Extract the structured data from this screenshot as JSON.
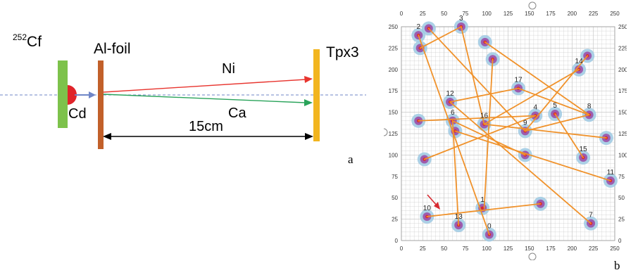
{
  "panel_a": {
    "source_label": "252Cf",
    "source_sup": "252",
    "source_base": "Cf",
    "foil_label": "Al-foil",
    "detector_label": "Tpx3",
    "heavy_fragment": "Ni",
    "light_fragment": "Ca",
    "absorber_label": "Cd",
    "distance_label": "15cm",
    "letter": "a",
    "colors": {
      "source_holder": "#7dc24b",
      "foil": "#c2602a",
      "detector": "#f2b51f",
      "ni_arrow": "#e8352f",
      "ca_arrow": "#29a35a",
      "cd_absorber": "#e0242a",
      "beam_axis": "#6f86c7"
    }
  },
  "panel_b": {
    "letter": "b",
    "x_ticks": [
      "0",
      "25",
      "50",
      "75",
      "100",
      "125",
      "150",
      "175",
      "200",
      "225",
      "250"
    ],
    "y_ticks": [
      "0",
      "25",
      "50",
      "75",
      "100",
      "125",
      "150",
      "175",
      "200",
      "225",
      "250"
    ],
    "range": [
      0,
      250
    ],
    "colors": {
      "track_line": "#f0922b",
      "cluster_halo": "#9ec9e3",
      "cluster_core": "#9a3fa0",
      "cluster_center": "#d7282f",
      "pointer_arrow": "#d7282f",
      "grid": "#c8c8c8"
    },
    "clusters": [
      {
        "label": "0",
        "x": 103,
        "y": 7
      },
      {
        "label": "1",
        "x": 95,
        "y": 38
      },
      {
        "label": "2",
        "x": 20,
        "y": 240
      },
      {
        "label": "3",
        "x": 70,
        "y": 250
      },
      {
        "label": "4",
        "x": 157,
        "y": 146
      },
      {
        "label": "5",
        "x": 180,
        "y": 148
      },
      {
        "label": "6",
        "x": 60,
        "y": 140
      },
      {
        "label": "7",
        "x": 222,
        "y": 20
      },
      {
        "label": "8",
        "x": 220,
        "y": 147
      },
      {
        "label": "9",
        "x": 145,
        "y": 128
      },
      {
        "label": "10",
        "x": 30,
        "y": 28
      },
      {
        "label": "11",
        "x": 245,
        "y": 70
      },
      {
        "label": "12",
        "x": 57,
        "y": 162
      },
      {
        "label": "13",
        "x": 67,
        "y": 18
      },
      {
        "label": "14",
        "x": 208,
        "y": 200
      },
      {
        "label": "15",
        "x": 213,
        "y": 97
      },
      {
        "label": "16",
        "x": 97,
        "y": 136
      },
      {
        "label": "17",
        "x": 137,
        "y": 178
      }
    ],
    "extra_clusters": [
      {
        "x": 32,
        "y": 248
      },
      {
        "x": 22,
        "y": 225
      },
      {
        "x": 98,
        "y": 232
      },
      {
        "x": 107,
        "y": 212
      },
      {
        "x": 218,
        "y": 216
      },
      {
        "x": 20,
        "y": 140
      },
      {
        "x": 27,
        "y": 95
      },
      {
        "x": 63,
        "y": 128
      },
      {
        "x": 145,
        "y": 100
      },
      {
        "x": 240,
        "y": 120
      },
      {
        "x": 163,
        "y": 43
      }
    ],
    "tracks": [
      [
        [
          20,
          240
        ],
        [
          103,
          7
        ]
      ],
      [
        [
          32,
          248
        ],
        [
          145,
          128
        ]
      ],
      [
        [
          22,
          225
        ],
        [
          70,
          250
        ]
      ],
      [
        [
          70,
          250
        ],
        [
          97,
          136
        ]
      ],
      [
        [
          98,
          232
        ],
        [
          220,
          147
        ]
      ],
      [
        [
          107,
          212
        ],
        [
          97,
          38
        ]
      ],
      [
        [
          218,
          216
        ],
        [
          145,
          128
        ]
      ],
      [
        [
          208,
          200
        ],
        [
          97,
          136
        ]
      ],
      [
        [
          57,
          162
        ],
        [
          222,
          20
        ]
      ],
      [
        [
          57,
          162
        ],
        [
          137,
          178
        ]
      ],
      [
        [
          20,
          140
        ],
        [
          157,
          146
        ]
      ],
      [
        [
          60,
          140
        ],
        [
          145,
          100
        ]
      ],
      [
        [
          63,
          128
        ],
        [
          245,
          70
        ]
      ],
      [
        [
          27,
          95
        ],
        [
          157,
          146
        ]
      ],
      [
        [
          97,
          136
        ],
        [
          240,
          120
        ]
      ],
      [
        [
          60,
          140
        ],
        [
          67,
          18
        ]
      ],
      [
        [
          180,
          148
        ],
        [
          213,
          97
        ]
      ],
      [
        [
          220,
          147
        ],
        [
          137,
          178
        ]
      ],
      [
        [
          163,
          43
        ],
        [
          30,
          28
        ]
      ],
      [
        [
          145,
          128
        ],
        [
          220,
          147
        ]
      ]
    ]
  }
}
